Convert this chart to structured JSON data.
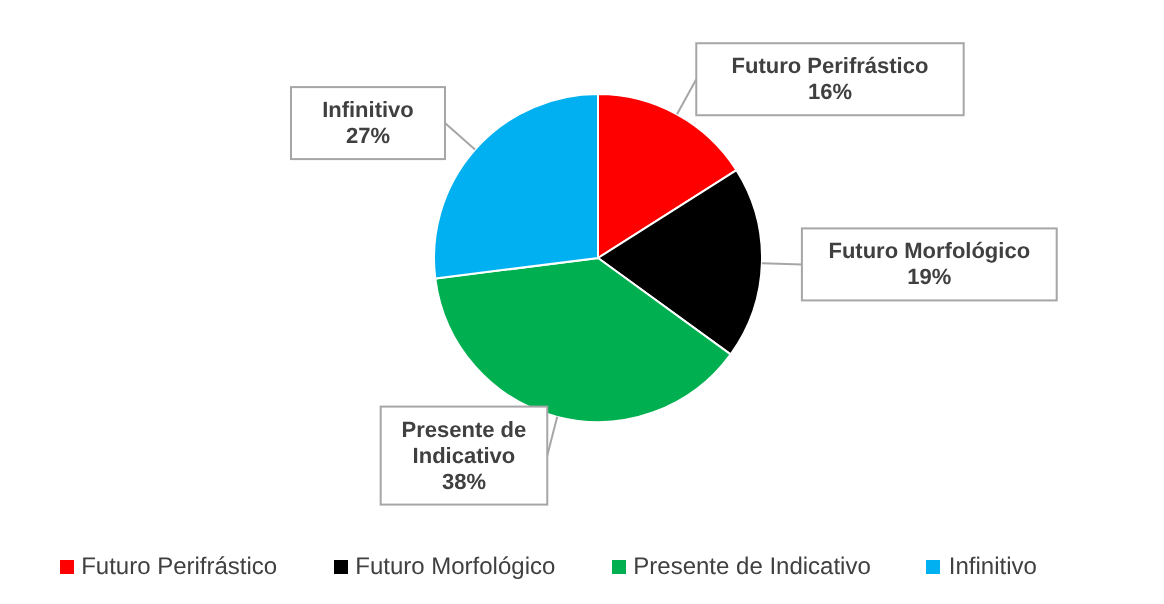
{
  "chart_data": {
    "type": "pie",
    "categories": [
      "Futuro Perifrástico",
      "Futuro Morfológico",
      "Presente de Indicativo",
      "Infinitivo"
    ],
    "values": [
      16,
      19,
      38,
      27
    ],
    "colors": [
      "#ff0000",
      "#000000",
      "#00b050",
      "#00b0f0"
    ],
    "value_labels": [
      "16%",
      "19%",
      "38%",
      "27%"
    ],
    "legend": "bottom"
  }
}
